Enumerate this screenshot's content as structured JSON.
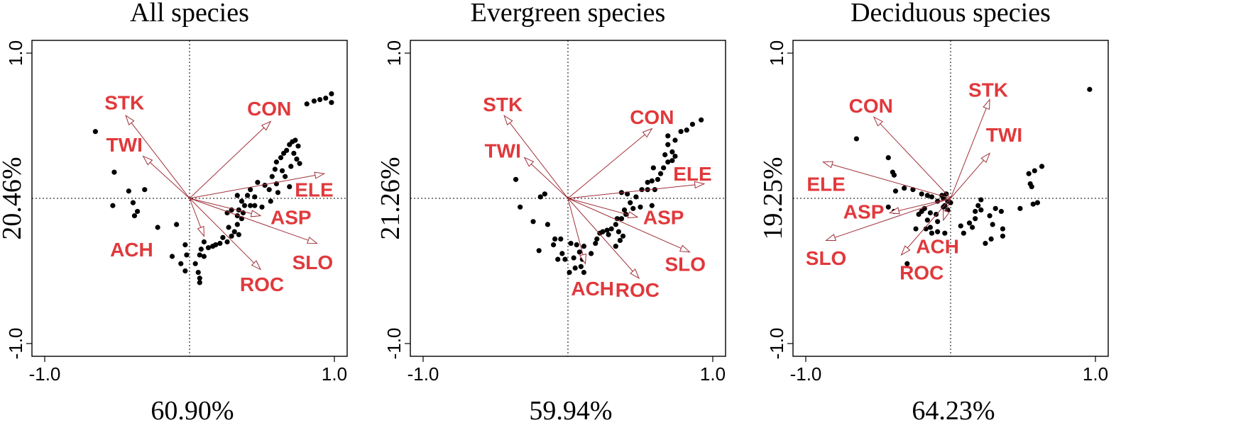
{
  "colors": {
    "vector": "#e0393c",
    "vector_line": "#a0303a",
    "point": "#000000"
  },
  "chart_data": [
    {
      "type": "scatter",
      "title": "All species",
      "xlabel": "60.90%",
      "ylabel": "20.46%",
      "xlim": [
        -1,
        1
      ],
      "ylim": [
        -1,
        1
      ],
      "xticks": [
        {
          "value": -1,
          "label": "-1.0"
        },
        {
          "value": 1,
          "label": "1.0"
        }
      ],
      "yticks": [
        {
          "value": -1,
          "label": "-1.0"
        },
        {
          "value": 1,
          "label": "1.0"
        }
      ],
      "vectors": [
        {
          "name": "STK",
          "x": -0.44,
          "y": 0.57,
          "label_x": -0.45,
          "label_y": 0.66
        },
        {
          "name": "TWI",
          "x": -0.32,
          "y": 0.29,
          "label_x": -0.45,
          "label_y": 0.37
        },
        {
          "name": "CON",
          "x": 0.56,
          "y": 0.53,
          "label_x": 0.55,
          "label_y": 0.62
        },
        {
          "name": "ELE",
          "x": 0.93,
          "y": 0.17,
          "label_x": 0.86,
          "label_y": 0.06
        },
        {
          "name": "ASP",
          "x": 0.49,
          "y": -0.12,
          "label_x": 0.7,
          "label_y": -0.13
        },
        {
          "name": "SLO",
          "x": 0.88,
          "y": -0.31,
          "label_x": 0.85,
          "label_y": -0.44
        },
        {
          "name": "ROC",
          "x": 0.49,
          "y": -0.49,
          "label_x": 0.5,
          "label_y": -0.59
        },
        {
          "name": "ACH",
          "x": 0.1,
          "y": -0.26,
          "label_x": -0.4,
          "label_y": -0.35
        }
      ],
      "points": [
        [
          -0.65,
          0.46
        ],
        [
          -0.52,
          0.18
        ],
        [
          -0.42,
          0.05
        ],
        [
          -0.53,
          -0.05
        ],
        [
          -0.31,
          0.06
        ],
        [
          -0.39,
          -0.03
        ],
        [
          -0.36,
          -0.09
        ],
        [
          -0.38,
          -0.12
        ],
        [
          -0.22,
          -0.2
        ],
        [
          -0.09,
          -0.18
        ],
        [
          -0.03,
          -0.32
        ],
        [
          -0.12,
          -0.4
        ],
        [
          -0.06,
          -0.45
        ],
        [
          -0.03,
          -0.5
        ],
        [
          -0.02,
          -0.39
        ],
        [
          0.06,
          -0.51
        ],
        [
          0.07,
          -0.55
        ],
        [
          0.07,
          -0.58
        ],
        [
          0.04,
          -0.45
        ],
        [
          0.07,
          -0.39
        ],
        [
          0.1,
          -0.4
        ],
        [
          0.13,
          -0.34
        ],
        [
          0.1,
          -0.3
        ],
        [
          0.08,
          -0.35
        ],
        [
          0.16,
          -0.33
        ],
        [
          0.18,
          -0.32
        ],
        [
          0.23,
          -0.27
        ],
        [
          0.21,
          -0.31
        ],
        [
          0.26,
          -0.3
        ],
        [
          0.29,
          -0.26
        ],
        [
          0.31,
          -0.23
        ],
        [
          0.34,
          -0.25
        ],
        [
          0.27,
          -0.2
        ],
        [
          0.33,
          -0.18
        ],
        [
          0.36,
          -0.14
        ],
        [
          0.37,
          -0.1
        ],
        [
          0.34,
          -0.08
        ],
        [
          0.38,
          -0.05
        ],
        [
          0.36,
          -0.02
        ],
        [
          0.33,
          0.02
        ],
        [
          0.4,
          0.02
        ],
        [
          0.42,
          -0.05
        ],
        [
          0.45,
          -0.05
        ],
        [
          0.45,
          0.01
        ],
        [
          0.42,
          0.06
        ],
        [
          0.47,
          0.11
        ],
        [
          0.52,
          0.09
        ],
        [
          0.55,
          0.06
        ],
        [
          0.6,
          0.1
        ],
        [
          0.57,
          0.15
        ],
        [
          0.59,
          0.2
        ],
        [
          0.6,
          0.25
        ],
        [
          0.63,
          0.28
        ],
        [
          0.65,
          0.31
        ],
        [
          0.67,
          0.33
        ],
        [
          0.69,
          0.37
        ],
        [
          0.71,
          0.39
        ],
        [
          0.73,
          0.4
        ],
        [
          0.75,
          0.36
        ],
        [
          0.72,
          0.31
        ],
        [
          0.74,
          0.27
        ],
        [
          0.76,
          0.24
        ],
        [
          0.7,
          0.22
        ],
        [
          0.64,
          0.19
        ],
        [
          0.66,
          0.15
        ],
        [
          0.69,
          0.08
        ],
        [
          0.61,
          0.04
        ],
        [
          0.56,
          -0.02
        ],
        [
          0.5,
          -0.06
        ],
        [
          0.29,
          -0.08
        ],
        [
          0.26,
          -0.1
        ],
        [
          0.33,
          -0.12
        ],
        [
          0.86,
          0.67
        ],
        [
          0.9,
          0.68
        ],
        [
          0.94,
          0.69
        ],
        [
          0.98,
          0.66
        ],
        [
          0.98,
          0.72
        ],
        [
          0.81,
          0.65
        ]
      ]
    },
    {
      "type": "scatter",
      "title": "Evergreen species",
      "xlabel": "59.94%",
      "ylabel": "21.26%",
      "xlim": [
        -1,
        1
      ],
      "ylim": [
        -1,
        1
      ],
      "xticks": [
        {
          "value": -1,
          "label": "-1.0"
        },
        {
          "value": 1,
          "label": "1.0"
        }
      ],
      "yticks": [
        {
          "value": -1,
          "label": "-1.0"
        },
        {
          "value": 1,
          "label": "1.0"
        }
      ],
      "vectors": [
        {
          "name": "STK",
          "x": -0.44,
          "y": 0.57,
          "label_x": -0.45,
          "label_y": 0.65
        },
        {
          "name": "TWI",
          "x": -0.3,
          "y": 0.28,
          "label_x": -0.45,
          "label_y": 0.33
        },
        {
          "name": "CON",
          "x": 0.58,
          "y": 0.48,
          "label_x": 0.58,
          "label_y": 0.56
        },
        {
          "name": "ELE",
          "x": 0.94,
          "y": 0.1,
          "label_x": 0.86,
          "label_y": 0.17
        },
        {
          "name": "ASP",
          "x": 0.48,
          "y": -0.13,
          "label_x": 0.66,
          "label_y": -0.13
        },
        {
          "name": "SLO",
          "x": 0.84,
          "y": -0.37,
          "label_x": 0.81,
          "label_y": -0.45
        },
        {
          "name": "ROC",
          "x": 0.49,
          "y": -0.55,
          "label_x": 0.48,
          "label_y": -0.63
        },
        {
          "name": "ACH",
          "x": 0.12,
          "y": -0.45,
          "label_x": 0.17,
          "label_y": -0.62
        }
      ],
      "points": [
        [
          -0.36,
          0.13
        ],
        [
          -0.16,
          0.03
        ],
        [
          -0.19,
          0.01
        ],
        [
          -0.33,
          -0.06
        ],
        [
          -0.24,
          -0.16
        ],
        [
          -0.14,
          -0.18
        ],
        [
          -0.09,
          -0.28
        ],
        [
          -0.05,
          -0.28
        ],
        [
          -0.2,
          -0.36
        ],
        [
          -0.1,
          -0.32
        ],
        [
          -0.04,
          -0.38
        ],
        [
          -0.07,
          -0.42
        ],
        [
          -0.02,
          -0.42
        ],
        [
          0.02,
          -0.31
        ],
        [
          0.06,
          -0.32
        ],
        [
          0.04,
          -0.41
        ],
        [
          0.08,
          -0.37
        ],
        [
          0.1,
          -0.42
        ],
        [
          0.11,
          -0.33
        ],
        [
          0.05,
          -0.48
        ],
        [
          0.01,
          -0.51
        ],
        [
          0.09,
          -0.47
        ],
        [
          0.11,
          -0.51
        ],
        [
          0.16,
          -0.38
        ],
        [
          0.19,
          -0.31
        ],
        [
          0.22,
          -0.24
        ],
        [
          0.2,
          -0.28
        ],
        [
          0.24,
          -0.23
        ],
        [
          0.27,
          -0.22
        ],
        [
          0.3,
          -0.21
        ],
        [
          0.28,
          -0.25
        ],
        [
          0.33,
          -0.18
        ],
        [
          0.35,
          -0.23
        ],
        [
          0.38,
          -0.26
        ],
        [
          0.33,
          -0.33
        ],
        [
          0.36,
          -0.29
        ],
        [
          0.34,
          -0.14
        ],
        [
          0.37,
          -0.14
        ],
        [
          0.4,
          -0.11
        ],
        [
          0.39,
          -0.08
        ],
        [
          0.45,
          -0.07
        ],
        [
          0.43,
          -0.03
        ],
        [
          0.47,
          0.01
        ],
        [
          0.41,
          0.03
        ],
        [
          0.37,
          0.04
        ],
        [
          0.51,
          0.06
        ],
        [
          0.55,
          0.06
        ],
        [
          0.5,
          -0.06
        ],
        [
          0.58,
          -0.05
        ],
        [
          0.6,
          0.06
        ],
        [
          0.55,
          0.11
        ],
        [
          0.58,
          0.12
        ],
        [
          0.62,
          0.13
        ],
        [
          0.64,
          0.17
        ],
        [
          0.59,
          0.21
        ],
        [
          0.66,
          0.21
        ],
        [
          0.69,
          0.25
        ],
        [
          0.67,
          0.3
        ],
        [
          0.72,
          0.26
        ],
        [
          0.74,
          0.29
        ],
        [
          0.72,
          0.32
        ],
        [
          0.69,
          0.37
        ],
        [
          0.74,
          0.4
        ],
        [
          0.78,
          0.46
        ],
        [
          0.82,
          0.47
        ],
        [
          0.86,
          0.51
        ],
        [
          0.92,
          0.54
        ],
        [
          0.69,
          0.43
        ]
      ]
    },
    {
      "type": "scatter",
      "title": "Deciduous species",
      "xlabel": "64.23%",
      "ylabel": "19.25%",
      "xlim": [
        -1,
        1
      ],
      "ylim": [
        -1,
        1
      ],
      "xticks": [
        {
          "value": -1,
          "label": "-1.0"
        },
        {
          "value": 1,
          "label": "1.0"
        }
      ],
      "yticks": [
        {
          "value": -1,
          "label": "-1.0"
        },
        {
          "value": 1,
          "label": "1.0"
        }
      ],
      "vectors": [
        {
          "name": "STK",
          "x": 0.27,
          "y": 0.68,
          "label_x": 0.26,
          "label_y": 0.75
        },
        {
          "name": "TWI",
          "x": 0.27,
          "y": 0.31,
          "label_x": 0.37,
          "label_y": 0.44
        },
        {
          "name": "CON",
          "x": -0.53,
          "y": 0.56,
          "label_x": -0.55,
          "label_y": 0.64
        },
        {
          "name": "ELE",
          "x": -0.88,
          "y": 0.25,
          "label_x": -0.86,
          "label_y": 0.1
        },
        {
          "name": "ASP",
          "x": -0.42,
          "y": -0.1,
          "label_x": -0.6,
          "label_y": -0.09
        },
        {
          "name": "SLO",
          "x": -0.86,
          "y": -0.29,
          "label_x": -0.86,
          "label_y": -0.41
        },
        {
          "name": "ROC",
          "x": -0.34,
          "y": -0.39,
          "label_x": -0.2,
          "label_y": -0.51
        },
        {
          "name": "ACH",
          "x": -0.05,
          "y": -0.15,
          "label_x": -0.09,
          "label_y": -0.33
        }
      ],
      "points": [
        [
          -0.65,
          0.41
        ],
        [
          -0.43,
          0.28
        ],
        [
          -0.4,
          0.18
        ],
        [
          -0.39,
          0.16
        ],
        [
          -0.38,
          0.05
        ],
        [
          -0.32,
          0.07
        ],
        [
          -0.43,
          -0.06
        ],
        [
          -0.39,
          -0.09
        ],
        [
          -0.26,
          0.06
        ],
        [
          -0.2,
          0.03
        ],
        [
          -0.16,
          0.02
        ],
        [
          -0.13,
          0.01
        ],
        [
          -0.09,
          -0.02
        ],
        [
          -0.05,
          0.0
        ],
        [
          -0.06,
          0.02
        ],
        [
          -0.03,
          0.03
        ],
        [
          -0.02,
          -0.02
        ],
        [
          -0.04,
          -0.05
        ],
        [
          -0.05,
          -0.06
        ],
        [
          -0.02,
          -0.08
        ],
        [
          0.0,
          -0.03
        ],
        [
          -0.14,
          -0.1
        ],
        [
          -0.18,
          -0.07
        ],
        [
          -0.2,
          -0.09
        ],
        [
          -0.22,
          -0.11
        ],
        [
          -0.16,
          -0.15
        ],
        [
          -0.1,
          -0.11
        ],
        [
          -0.09,
          -0.16
        ],
        [
          -0.14,
          -0.2
        ],
        [
          -0.17,
          -0.21
        ],
        [
          -0.24,
          -0.21
        ],
        [
          -0.09,
          -0.23
        ],
        [
          -0.13,
          -0.24
        ],
        [
          -0.04,
          -0.24
        ],
        [
          0.09,
          -0.24
        ],
        [
          0.07,
          -0.19
        ],
        [
          0.13,
          -0.17
        ],
        [
          0.15,
          -0.2
        ],
        [
          0.17,
          -0.14
        ],
        [
          0.17,
          -0.09
        ],
        [
          0.19,
          -0.05
        ],
        [
          0.21,
          -0.01
        ],
        [
          0.21,
          -0.08
        ],
        [
          0.27,
          -0.12
        ],
        [
          0.29,
          -0.18
        ],
        [
          0.36,
          -0.21
        ],
        [
          0.36,
          -0.26
        ],
        [
          0.28,
          -0.28
        ],
        [
          0.24,
          -0.31
        ],
        [
          0.31,
          -0.07
        ],
        [
          0.35,
          -0.09
        ],
        [
          0.48,
          -0.07
        ],
        [
          0.57,
          -0.04
        ],
        [
          0.6,
          -0.03
        ],
        [
          0.56,
          0.08
        ],
        [
          0.55,
          0.1
        ],
        [
          0.54,
          0.17
        ],
        [
          0.58,
          0.19
        ],
        [
          0.63,
          0.22
        ],
        [
          0.96,
          0.75
        ],
        [
          -0.3,
          -0.45
        ]
      ]
    }
  ]
}
